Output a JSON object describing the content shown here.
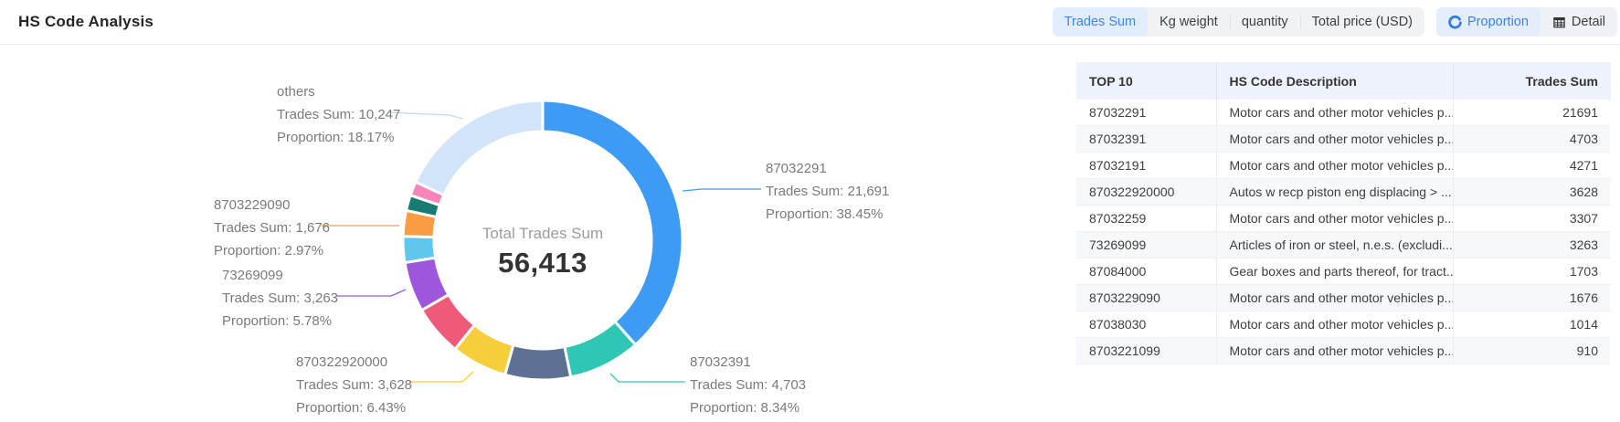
{
  "header": {
    "title": "HS Code Analysis",
    "metric_tabs": {
      "active": "Trades Sum",
      "items": [
        "Trades Sum",
        "Kg weight",
        "quantity",
        "Total price (USD)"
      ]
    },
    "view_tabs": {
      "active": "Proportion",
      "items": [
        {
          "label": "Proportion",
          "icon": "donut-chart-icon"
        },
        {
          "label": "Detail",
          "icon": "table-icon"
        }
      ]
    }
  },
  "chart_data": {
    "type": "donut",
    "center": {
      "label": "Total Trades Sum",
      "value": "56,413"
    },
    "total": 56413,
    "label_prefixes": {
      "sum": "Trades Sum: ",
      "proportion": "Proportion: "
    },
    "slices": [
      {
        "name": "87032291",
        "value": 21691,
        "display": "21,691",
        "proportion": "38.45%",
        "color": "#3d9bf3"
      },
      {
        "name": "87032391",
        "value": 4703,
        "display": "4,703",
        "proportion": "8.34%",
        "color": "#2fc6b4"
      },
      {
        "name": "87032191",
        "value": 4271,
        "display": "4,271",
        "proportion": "7.57%",
        "color": "#5e7093"
      },
      {
        "name": "870322920000",
        "value": 3628,
        "display": "3,628",
        "proportion": "6.43%",
        "color": "#f6ce3b"
      },
      {
        "name": "87032259",
        "value": 3307,
        "display": "3,307",
        "proportion": "5.86%",
        "color": "#ef5a7b"
      },
      {
        "name": "73269099",
        "value": 3263,
        "display": "3,263",
        "proportion": "5.78%",
        "color": "#9e56dc"
      },
      {
        "name": "87084000",
        "value": 1703,
        "display": "1,703",
        "proportion": "3.02%",
        "color": "#5fc6ee"
      },
      {
        "name": "8703229090",
        "value": 1676,
        "display": "1,676",
        "proportion": "2.97%",
        "color": "#fa9c41"
      },
      {
        "name": "87038030",
        "value": 1014,
        "display": "1,014",
        "proportion": "1.80%",
        "color": "#177d72"
      },
      {
        "name": "8703221099",
        "value": 910,
        "display": "910",
        "proportion": "1.61%",
        "color": "#f784bd"
      },
      {
        "name": "others",
        "value": 10247,
        "display": "10,247",
        "proportion": "18.17%",
        "color": "#d2e4f9"
      }
    ],
    "callout_slices": [
      "others",
      "87032291",
      "8703229090",
      "73269099",
      "870322920000",
      "87032391"
    ]
  },
  "table": {
    "columns": [
      "TOP 10",
      "HS Code Description",
      "Trades Sum"
    ],
    "rows": [
      [
        "87032291",
        "Motor cars and other motor vehicles p...",
        "21691"
      ],
      [
        "87032391",
        "Motor cars and other motor vehicles p...",
        "4703"
      ],
      [
        "87032191",
        "Motor cars and other motor vehicles p...",
        "4271"
      ],
      [
        "870322920000",
        "Autos w recp piston eng displacing > ...",
        "3628"
      ],
      [
        "87032259",
        "Motor cars and other motor vehicles p...",
        "3307"
      ],
      [
        "73269099",
        "Articles of iron or steel, n.e.s. (excludi...",
        "3263"
      ],
      [
        "87084000",
        "Gear boxes and parts thereof, for tract...",
        "1703"
      ],
      [
        "8703229090",
        "Motor cars and other motor vehicles p...",
        "1676"
      ],
      [
        "87038030",
        "Motor cars and other motor vehicles p...",
        "1014"
      ],
      [
        "8703221099",
        "Motor cars and other motor vehicles p...",
        "910"
      ]
    ]
  },
  "colors": {
    "accent": "#3a87e8",
    "table_header_bg": "#eef2fc"
  }
}
